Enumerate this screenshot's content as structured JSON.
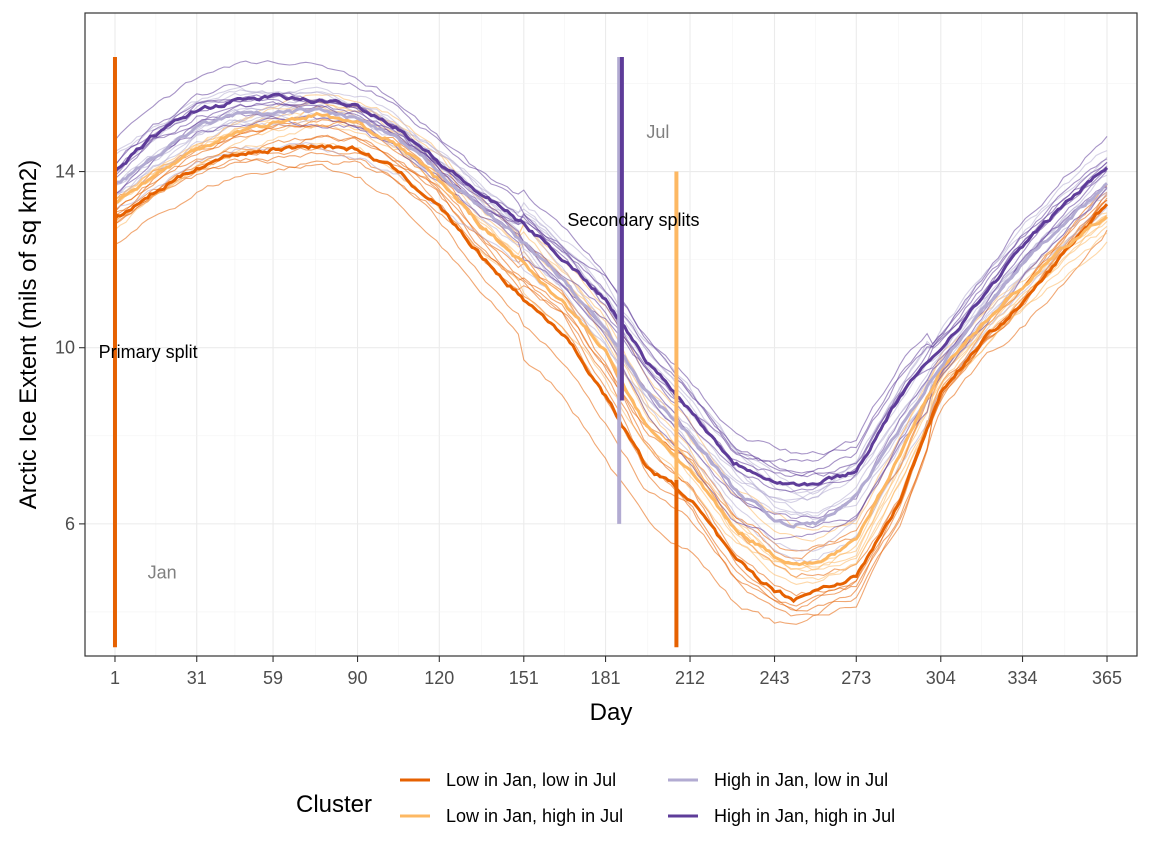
{
  "chart_data": {
    "type": "line",
    "xlabel": "Day",
    "ylabel": "Arctic Ice Extent (mils of sq km2)",
    "xlim": [
      -10,
      376
    ],
    "ylim": [
      3,
      17.6
    ],
    "x_ticks": [
      1,
      31,
      59,
      90,
      120,
      151,
      181,
      212,
      243,
      273,
      304,
      334,
      365
    ],
    "y_ticks": [
      6,
      10,
      14
    ],
    "grid": true,
    "legend": {
      "title": "Cluster",
      "position": "bottom",
      "entries": [
        {
          "label": "Low in Jan, low in Jul",
          "color": "#e66101"
        },
        {
          "label": "Low in Jan, high in Jul",
          "color": "#fdb863"
        },
        {
          "label": "High in Jan, low in Jul",
          "color": "#b2abd2"
        },
        {
          "label": "High in Jan, high in Jul",
          "color": "#5e3c99"
        }
      ]
    },
    "series": [
      {
        "name": "Low in Jan, low in Jul",
        "color": "#e66101",
        "x": [
          1,
          15,
          31,
          45,
          59,
          75,
          90,
          105,
          120,
          135,
          151,
          166,
          181,
          196,
          212,
          228,
          243,
          250,
          258,
          273,
          289,
          304,
          320,
          334,
          350,
          365
        ],
        "y": [
          12.9,
          13.5,
          14.1,
          14.4,
          14.5,
          14.6,
          14.5,
          14.0,
          13.2,
          12.1,
          11.1,
          10.3,
          8.9,
          7.3,
          6.6,
          5.2,
          4.5,
          4.3,
          4.5,
          4.8,
          6.5,
          9.0,
          10.2,
          11.0,
          12.2,
          13.3
        ],
        "emphasis": true
      },
      {
        "name": "Low in Jan, high in Jul",
        "color": "#fdb863",
        "x": [
          1,
          15,
          31,
          45,
          59,
          75,
          90,
          105,
          120,
          135,
          151,
          166,
          181,
          196,
          212,
          228,
          243,
          250,
          258,
          273,
          289,
          304,
          320,
          334,
          350,
          365
        ],
        "y": [
          13.3,
          13.9,
          14.5,
          14.9,
          15.1,
          15.3,
          15.1,
          14.6,
          13.8,
          12.8,
          11.9,
          11.0,
          9.9,
          8.2,
          7.2,
          5.9,
          5.3,
          5.1,
          5.1,
          5.6,
          7.6,
          9.5,
          10.6,
          11.4,
          12.3,
          13.0
        ],
        "emphasis": true
      },
      {
        "name": "High in Jan, low in Jul",
        "color": "#b2abd2",
        "x": [
          1,
          15,
          31,
          45,
          59,
          75,
          90,
          105,
          120,
          135,
          151,
          166,
          181,
          196,
          212,
          228,
          243,
          250,
          258,
          273,
          289,
          304,
          320,
          334,
          350,
          365
        ],
        "y": [
          13.7,
          14.3,
          15.0,
          15.3,
          15.3,
          15.4,
          15.2,
          14.7,
          14.0,
          13.2,
          12.4,
          11.5,
          10.4,
          9.0,
          8.0,
          6.8,
          6.1,
          6.0,
          6.0,
          6.6,
          8.2,
          9.6,
          10.9,
          11.9,
          12.9,
          13.7
        ],
        "emphasis": true
      },
      {
        "name": "High in Jan, high in Jul",
        "color": "#5e3c99",
        "x": [
          1,
          15,
          31,
          45,
          59,
          75,
          90,
          105,
          120,
          135,
          151,
          166,
          181,
          196,
          212,
          228,
          243,
          250,
          258,
          273,
          289,
          304,
          320,
          334,
          350,
          365
        ],
        "y": [
          14.0,
          14.8,
          15.4,
          15.6,
          15.7,
          15.6,
          15.5,
          15.0,
          14.2,
          13.5,
          12.8,
          12.0,
          11.1,
          9.7,
          8.6,
          7.4,
          7.0,
          6.9,
          6.9,
          7.2,
          8.9,
          10.0,
          11.2,
          12.3,
          13.3,
          14.1
        ],
        "emphasis": true
      }
    ],
    "vlines": [
      {
        "x": 1,
        "y0": 3.2,
        "y1": 16.6,
        "color": "#e66101",
        "width": 4
      },
      {
        "x": 186,
        "y0": 6.0,
        "y1": 16.6,
        "color": "#b2abd2",
        "width": 4
      },
      {
        "x": 187,
        "y0": 8.8,
        "y1": 16.6,
        "color": "#5e3c99",
        "width": 4
      },
      {
        "x": 207,
        "y0": 7.0,
        "y1": 14.0,
        "color": "#fdb863",
        "width": 4
      },
      {
        "x": 207,
        "y0": 3.2,
        "y1": 7.0,
        "color": "#e66101",
        "width": 4
      }
    ],
    "annotations": [
      {
        "text": "Jan",
        "x": 13,
        "y": 4.9,
        "color": "#808080"
      },
      {
        "text": "Jul",
        "x": 196,
        "y": 14.9,
        "color": "#808080"
      },
      {
        "text": "Secondary splits",
        "x": 167,
        "y": 12.9,
        "color": "#000000"
      },
      {
        "text": "Primary split",
        "x": -5,
        "y": 9.9,
        "color": "#000000"
      }
    ]
  }
}
